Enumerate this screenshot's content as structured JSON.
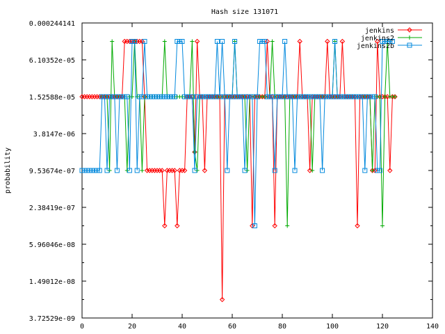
{
  "chart_data": {
    "type": "line",
    "title": "Hash size 131071",
    "xlabel": "",
    "ylabel": "probability",
    "xlim": [
      0,
      140
    ],
    "x_ticks": [
      0,
      20,
      40,
      60,
      80,
      100,
      120,
      140
    ],
    "y_scale": "log2",
    "ylim": [
      3.72529e-09,
      0.000244141
    ],
    "y_ticks": [
      {
        "label": "0.000244141",
        "value": 0.000244141
      },
      {
        "label": "6.10352e-05",
        "value": 6.10352e-05
      },
      {
        "label": "1.52588e-05",
        "value": 1.52588e-05
      },
      {
        "label": "3.8147e-06",
        "value": 3.8147e-06
      },
      {
        "label": "9.53674e-07",
        "value": 9.53674e-07
      },
      {
        "label": "2.38419e-07",
        "value": 2.38419e-07
      },
      {
        "label": "5.96046e-08",
        "value": 5.96046e-08
      },
      {
        "label": "1.49012e-08",
        "value": 1.49012e-08
      },
      {
        "label": "3.72529e-09",
        "value": 3.72529e-09
      }
    ],
    "legend_position": "top-right",
    "grid": false,
    "series": [
      {
        "name": "jenkins",
        "color": "#ff0000",
        "marker": "diamond",
        "x": [
          0,
          1,
          2,
          3,
          4,
          5,
          6,
          7,
          8,
          9,
          10,
          11,
          12,
          13,
          14,
          15,
          16,
          17,
          18,
          19,
          20,
          21,
          22,
          23,
          24,
          25,
          26,
          27,
          28,
          29,
          30,
          31,
          32,
          33,
          34,
          35,
          36,
          37,
          38,
          39,
          40,
          41,
          42,
          43,
          44,
          45,
          46,
          47,
          48,
          49,
          50,
          51,
          52,
          53,
          54,
          55,
          56,
          57,
          58,
          59,
          60,
          61,
          62,
          63,
          64,
          65,
          66,
          67,
          68,
          69,
          70,
          71,
          72,
          73,
          74,
          75,
          76,
          77,
          78,
          79,
          80,
          81,
          82,
          83,
          84,
          85,
          86,
          87,
          88,
          89,
          90,
          91,
          92,
          93,
          94,
          95,
          96,
          97,
          98,
          99,
          100,
          101,
          102,
          103,
          104,
          105,
          106,
          107,
          108,
          109,
          110,
          111,
          112,
          113,
          114,
          115,
          116,
          117,
          118,
          119,
          120,
          121,
          122,
          123,
          124,
          125
        ],
        "y": [
          1.52588e-05,
          1.52588e-05,
          1.52588e-05,
          1.52588e-05,
          1.52588e-05,
          1.52588e-05,
          1.52588e-05,
          1.52588e-05,
          1.52588e-05,
          1.52588e-05,
          1.52588e-05,
          1.52588e-05,
          1.52588e-05,
          1.52588e-05,
          1.52588e-05,
          1.52588e-05,
          1.52588e-05,
          0.00012207,
          0.00012207,
          0.00012207,
          0.00012207,
          0.00012207,
          0.00012207,
          0.00012207,
          0.00012207,
          1.52588e-05,
          9.53674e-07,
          9.53674e-07,
          9.53674e-07,
          9.53674e-07,
          9.53674e-07,
          9.53674e-07,
          9.53674e-07,
          1.19209e-07,
          9.53674e-07,
          9.53674e-07,
          9.53674e-07,
          9.53674e-07,
          1.19209e-07,
          9.53674e-07,
          9.53674e-07,
          9.53674e-07,
          1.52588e-05,
          1.52588e-05,
          1.52588e-05,
          1.90735e-06,
          0.00012207,
          1.52588e-05,
          1.52588e-05,
          9.53674e-07,
          1.52588e-05,
          1.52588e-05,
          1.52588e-05,
          1.52588e-05,
          1.52588e-05,
          1.52588e-05,
          7.45058e-09,
          1.52588e-05,
          1.52588e-05,
          1.52588e-05,
          1.52588e-05,
          1.52588e-05,
          1.52588e-05,
          1.52588e-05,
          1.52588e-05,
          1.52588e-05,
          1.52588e-05,
          1.52588e-05,
          1.19209e-07,
          1.52588e-05,
          1.52588e-05,
          1.52588e-05,
          1.52588e-05,
          1.52588e-05,
          0.00012207,
          1.52588e-05,
          1.52588e-05,
          1.19209e-07,
          1.52588e-05,
          1.52588e-05,
          1.52588e-05,
          1.52588e-05,
          1.52588e-05,
          1.52588e-05,
          1.52588e-05,
          1.52588e-05,
          1.52588e-05,
          0.00012207,
          1.52588e-05,
          1.52588e-05,
          1.52588e-05,
          9.53674e-07,
          1.52588e-05,
          1.52588e-05,
          1.52588e-05,
          1.52588e-05,
          1.52588e-05,
          1.52588e-05,
          0.00012207,
          1.52588e-05,
          1.52588e-05,
          1.52588e-05,
          1.52588e-05,
          1.52588e-05,
          0.00012207,
          1.52588e-05,
          1.52588e-05,
          1.52588e-05,
          1.52588e-05,
          1.52588e-05,
          1.19209e-07,
          1.52588e-05,
          1.52588e-05,
          1.52588e-05,
          1.52588e-05,
          1.52588e-05,
          9.53674e-07,
          9.53674e-07,
          0.00012207,
          1.52588e-05,
          1.52588e-05,
          1.52588e-05,
          1.52588e-05,
          9.53674e-07,
          1.52588e-05,
          1.52588e-05
        ]
      },
      {
        "name": "jenkins2",
        "color": "#00aa00",
        "marker": "plus",
        "x": [
          8,
          9,
          10,
          11,
          12,
          13,
          14,
          15,
          16,
          17,
          18,
          19,
          20,
          21,
          22,
          23,
          24,
          25,
          26,
          27,
          28,
          29,
          30,
          31,
          32,
          33,
          34,
          35,
          36,
          37,
          38,
          39,
          40,
          41,
          42,
          43,
          44,
          45,
          46,
          47,
          48,
          49,
          50,
          51,
          52,
          53,
          54,
          55,
          56,
          57,
          58,
          59,
          60,
          61,
          62,
          63,
          64,
          65,
          66,
          67,
          68,
          69,
          70,
          71,
          72,
          73,
          74,
          75,
          76,
          77,
          78,
          79,
          80,
          81,
          82,
          83,
          84,
          85,
          86,
          87,
          88,
          89,
          90,
          91,
          92,
          93,
          94,
          95,
          96,
          97,
          98,
          99,
          100,
          101,
          102,
          103,
          104,
          105,
          106,
          107,
          108,
          109,
          110,
          111,
          112,
          113,
          114,
          115,
          116,
          117,
          118,
          119,
          120,
          121,
          122,
          123,
          124,
          125
        ],
        "y": [
          1.52588e-05,
          1.52588e-05,
          1.52588e-05,
          9.53674e-07,
          0.00012207,
          1.52588e-05,
          1.52588e-05,
          1.52588e-05,
          1.52588e-05,
          1.52588e-05,
          9.53674e-07,
          1.52588e-05,
          1.52588e-05,
          0.00012207,
          1.52588e-05,
          1.52588e-05,
          9.53674e-07,
          1.52588e-05,
          1.52588e-05,
          1.52588e-05,
          1.52588e-05,
          1.52588e-05,
          1.52588e-05,
          1.52588e-05,
          1.52588e-05,
          0.00012207,
          1.52588e-05,
          1.52588e-05,
          1.52588e-05,
          1.52588e-05,
          1.52588e-05,
          1.52588e-05,
          1.52588e-05,
          1.52588e-05,
          1.52588e-05,
          1.52588e-05,
          0.00012207,
          1.90735e-06,
          9.53674e-07,
          1.52588e-05,
          1.52588e-05,
          1.52588e-05,
          1.52588e-05,
          1.52588e-05,
          1.52588e-05,
          1.52588e-05,
          1.52588e-05,
          1.52588e-05,
          1.52588e-05,
          1.52588e-05,
          1.52588e-05,
          1.52588e-05,
          1.52588e-05,
          0.00012207,
          1.52588e-05,
          1.52588e-05,
          1.52588e-05,
          1.52588e-05,
          9.53674e-07,
          1.52588e-05,
          1.52588e-05,
          1.52588e-05,
          1.52588e-05,
          1.52588e-05,
          1.52588e-05,
          1.52588e-05,
          1.52588e-05,
          1.52588e-05,
          0.00012207,
          1.52588e-05,
          1.52588e-05,
          1.52588e-05,
          1.52588e-05,
          1.52588e-05,
          1.19209e-07,
          1.52588e-05,
          1.52588e-05,
          1.52588e-05,
          1.52588e-05,
          1.52588e-05,
          1.52588e-05,
          1.52588e-05,
          1.52588e-05,
          1.52588e-05,
          9.53674e-07,
          1.52588e-05,
          1.52588e-05,
          1.52588e-05,
          1.52588e-05,
          1.52588e-05,
          1.52588e-05,
          1.52588e-05,
          1.52588e-05,
          0.00012207,
          1.52588e-05,
          1.52588e-05,
          1.52588e-05,
          1.52588e-05,
          1.52588e-05,
          1.52588e-05,
          1.52588e-05,
          1.52588e-05,
          1.52588e-05,
          1.52588e-05,
          1.52588e-05,
          1.52588e-05,
          1.52588e-05,
          1.52588e-05,
          9.53674e-07,
          1.52588e-05,
          1.52588e-05,
          1.52588e-05,
          1.19209e-07,
          1.52588e-05,
          0.00012207,
          1.52588e-05,
          1.52588e-05,
          1.52588e-05
        ]
      },
      {
        "name": "jenkins2b",
        "color": "#0088dd",
        "marker": "square",
        "x": [
          0,
          1,
          2,
          3,
          4,
          5,
          6,
          7,
          8,
          9,
          10,
          11,
          12,
          13,
          14,
          15,
          16,
          17,
          18,
          19,
          20,
          21,
          22,
          23,
          24,
          25,
          26,
          27,
          28,
          29,
          30,
          31,
          32,
          33,
          34,
          35,
          36,
          37,
          38,
          39,
          40,
          41,
          42,
          43,
          44,
          45,
          46,
          47,
          48,
          49,
          50,
          51,
          52,
          53,
          54,
          55,
          56,
          57,
          58,
          59,
          60,
          61,
          62,
          63,
          64,
          65,
          66,
          67,
          68,
          69,
          70,
          71,
          72,
          73,
          74,
          75,
          76,
          77,
          78,
          79,
          80,
          81,
          82,
          83,
          84,
          85,
          86,
          87,
          88,
          89,
          90,
          91,
          92,
          93,
          94,
          95,
          96,
          97,
          98,
          99,
          100,
          101,
          102,
          103,
          104,
          105,
          106,
          107,
          108,
          109,
          110,
          111,
          112,
          113,
          114,
          115,
          116,
          117,
          118,
          119,
          120,
          121,
          122,
          123,
          124
        ],
        "y": [
          9.53674e-07,
          9.53674e-07,
          9.53674e-07,
          9.53674e-07,
          9.53674e-07,
          9.53674e-07,
          9.53674e-07,
          9.53674e-07,
          1.52588e-05,
          1.52588e-05,
          9.53674e-07,
          1.52588e-05,
          1.52588e-05,
          1.52588e-05,
          9.53674e-07,
          1.52588e-05,
          1.52588e-05,
          1.52588e-05,
          1.52588e-05,
          9.53674e-07,
          0.00012207,
          0.00012207,
          9.53674e-07,
          1.52588e-05,
          1.52588e-05,
          0.00012207,
          1.52588e-05,
          1.52588e-05,
          1.52588e-05,
          1.52588e-05,
          1.52588e-05,
          1.52588e-05,
          1.52588e-05,
          1.52588e-05,
          1.52588e-05,
          1.52588e-05,
          1.52588e-05,
          1.52588e-05,
          0.00012207,
          0.00012207,
          0.00012207,
          1.52588e-05,
          1.52588e-05,
          1.52588e-05,
          1.52588e-05,
          9.53674e-07,
          1.52588e-05,
          1.52588e-05,
          1.52588e-05,
          1.52588e-05,
          1.52588e-05,
          1.52588e-05,
          1.52588e-05,
          1.52588e-05,
          0.00012207,
          1.52588e-05,
          0.00012207,
          1.52588e-05,
          9.53674e-07,
          1.52588e-05,
          1.52588e-05,
          0.00012207,
          1.52588e-05,
          1.52588e-05,
          1.52588e-05,
          9.53674e-07,
          1.52588e-05,
          1.52588e-05,
          1.52588e-05,
          1.19209e-07,
          1.52588e-05,
          0.00012207,
          0.00012207,
          0.00012207,
          1.52588e-05,
          1.52588e-05,
          1.52588e-05,
          9.53674e-07,
          1.52588e-05,
          1.52588e-05,
          1.52588e-05,
          0.00012207,
          1.52588e-05,
          1.52588e-05,
          1.52588e-05,
          9.53674e-07,
          1.52588e-05,
          1.52588e-05,
          1.52588e-05,
          1.52588e-05,
          1.52588e-05,
          1.52588e-05,
          1.52588e-05,
          1.52588e-05,
          1.52588e-05,
          1.52588e-05,
          9.53674e-07,
          1.52588e-05,
          1.52588e-05,
          1.52588e-05,
          1.52588e-05,
          0.00012207,
          1.52588e-05,
          1.52588e-05,
          1.52588e-05,
          1.52588e-05,
          1.52588e-05,
          1.52588e-05,
          1.52588e-05,
          1.52588e-05,
          1.52588e-05,
          1.52588e-05,
          1.52588e-05,
          9.53674e-07,
          1.52588e-05,
          1.52588e-05,
          1.52588e-05,
          1.52588e-05,
          9.53674e-07,
          9.53674e-07,
          0.00012207,
          0.00012207,
          0.00012207,
          0.00012207,
          0.00012207
        ]
      }
    ]
  }
}
